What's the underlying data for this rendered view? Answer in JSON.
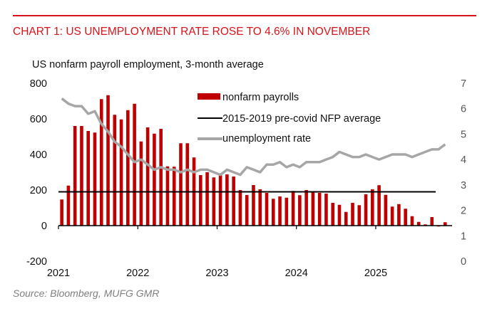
{
  "header": {
    "title": "CHART 1: US UNEMPLOYMENT RATE ROSE TO 4.6% IN NOVEMBER",
    "subtitle": "US nonfarm payroll employment, 3-month average",
    "source": "Source: Bloomberg, MUFG GMR"
  },
  "chart_data": {
    "type": "bar",
    "title": "CHART 1: US UNEMPLOYMENT RATE ROSE TO 4.6% IN NOVEMBER",
    "ylabel": "US nonfarm payroll employment, 3-month average",
    "x_start": "2021-01",
    "x_end": "2025-11",
    "x_frequency": "monthly",
    "x_tick_labels": [
      "2021",
      "2022",
      "2023",
      "2024",
      "2025"
    ],
    "ylim": [
      -200,
      800
    ],
    "y_ticks": [
      -200,
      0,
      200,
      400,
      600,
      800
    ],
    "y2lim": [
      0,
      7
    ],
    "y2_ticks": [
      0,
      1,
      2,
      3,
      4,
      5,
      6,
      7
    ],
    "grid": false,
    "legend_position": "top-center",
    "series": [
      {
        "name": "nonfarm payrolls",
        "type": "bar",
        "axis": "left",
        "color": "#c00000",
        "values": [
          147,
          225,
          560,
          560,
          532,
          523,
          711,
          733,
          623,
          597,
          649,
          685,
          473,
          552,
          517,
          544,
          333,
          331,
          463,
          463,
          383,
          284,
          300,
          271,
          284,
          288,
          276,
          200,
          172,
          228,
          204,
          184,
          151,
          164,
          157,
          195,
          171,
          200,
          187,
          184,
          180,
          128,
          117,
          77,
          128,
          115,
          176,
          204,
          227,
          173,
          107,
          121,
          95,
          53,
          21,
          7,
          48,
          -5,
          19
        ]
      },
      {
        "name": "2015-2019 pre-covid NFP average",
        "type": "hline",
        "axis": "left",
        "color": "#000000",
        "value": 190
      },
      {
        "name": "unemployment rate",
        "type": "line",
        "axis": "right",
        "color": "#a6a6a6",
        "values": [
          6.4,
          6.2,
          6.1,
          6.1,
          5.8,
          5.9,
          5.4,
          5.1,
          4.7,
          4.5,
          4.2,
          3.9,
          4.0,
          3.8,
          3.6,
          3.7,
          3.6,
          3.6,
          3.5,
          3.6,
          3.5,
          3.6,
          3.6,
          3.5,
          3.4,
          3.6,
          3.5,
          3.4,
          3.7,
          3.6,
          3.5,
          3.8,
          3.8,
          3.9,
          3.7,
          3.8,
          3.7,
          3.9,
          3.9,
          3.9,
          4.0,
          4.1,
          4.3,
          4.2,
          4.1,
          4.1,
          4.2,
          4.1,
          4.0,
          4.1,
          4.2,
          4.2,
          4.2,
          4.1,
          4.2,
          4.3,
          4.4,
          4.4,
          4.6
        ]
      }
    ]
  }
}
